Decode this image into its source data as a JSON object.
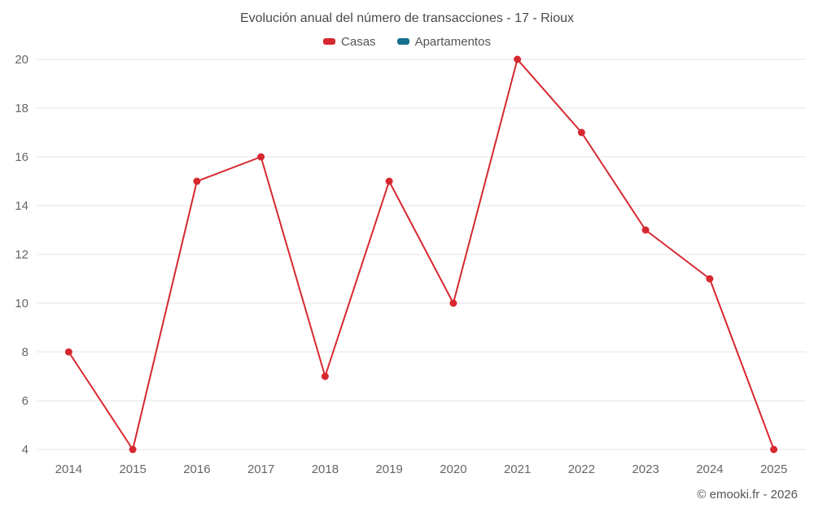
{
  "chart_data": {
    "type": "line",
    "title": "Evolución anual del número de transacciones - 17 - Rioux",
    "xlabel": "",
    "ylabel": "",
    "categories": [
      "2014",
      "2015",
      "2016",
      "2017",
      "2018",
      "2019",
      "2020",
      "2021",
      "2022",
      "2023",
      "2024",
      "2025"
    ],
    "series": [
      {
        "name": "Casas",
        "color": "#d7282f",
        "values": [
          8,
          4,
          15,
          16,
          7,
          15,
          10,
          20,
          17,
          13,
          11,
          4
        ]
      },
      {
        "name": "Apartamentos",
        "color": "#156f8f",
        "values": []
      }
    ],
    "ylim": [
      4,
      20
    ],
    "ytick_step": 2,
    "grid": true,
    "grid_color": "#e6e6e6",
    "legend_position": "top"
  },
  "footer": {
    "copyright": "© emooki.fr - 2026"
  }
}
